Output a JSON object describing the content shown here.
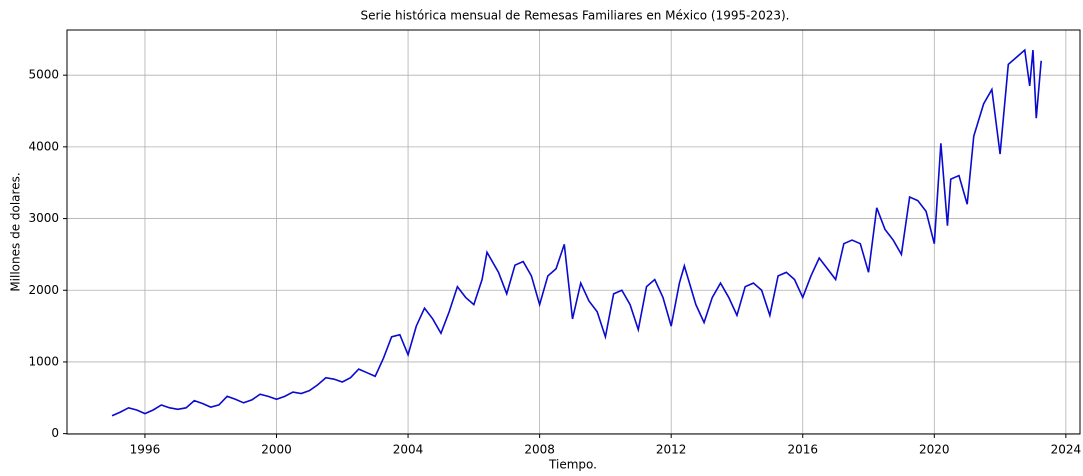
{
  "chart_data": {
    "type": "line",
    "title": "Serie histórica mensual de Remesas Familiares en México (1995-2023).",
    "xlabel": "Tiempo.",
    "ylabel": "Millones de dolares.",
    "x": [
      1995.0,
      1995.25,
      1995.5,
      1995.75,
      1996.0,
      1996.25,
      1996.5,
      1996.75,
      1997.0,
      1997.25,
      1997.5,
      1997.75,
      1998.0,
      1998.25,
      1998.5,
      1998.75,
      1999.0,
      1999.25,
      1999.5,
      1999.75,
      2000.0,
      2000.25,
      2000.5,
      2000.75,
      2001.0,
      2001.25,
      2001.5,
      2001.75,
      2002.0,
      2002.25,
      2002.5,
      2002.75,
      2003.0,
      2003.25,
      2003.5,
      2003.75,
      2004.0,
      2004.25,
      2004.5,
      2004.75,
      2005.0,
      2005.25,
      2005.5,
      2005.75,
      2006.0,
      2006.25,
      2006.4,
      2006.75,
      2007.0,
      2007.25,
      2007.5,
      2007.75,
      2008.0,
      2008.25,
      2008.5,
      2008.75,
      2009.0,
      2009.25,
      2009.5,
      2009.75,
      2010.0,
      2010.25,
      2010.5,
      2010.75,
      2011.0,
      2011.25,
      2011.5,
      2011.75,
      2012.0,
      2012.25,
      2012.4,
      2012.75,
      2013.0,
      2013.25,
      2013.5,
      2013.75,
      2014.0,
      2014.25,
      2014.5,
      2014.75,
      2015.0,
      2015.25,
      2015.5,
      2015.75,
      2016.0,
      2016.25,
      2016.5,
      2016.75,
      2017.0,
      2017.25,
      2017.5,
      2017.75,
      2018.0,
      2018.25,
      2018.5,
      2018.75,
      2019.0,
      2019.25,
      2019.5,
      2019.75,
      2020.0,
      2020.2,
      2020.4,
      2020.5,
      2020.75,
      2021.0,
      2021.2,
      2021.5,
      2021.75,
      2022.0,
      2022.25,
      2022.5,
      2022.75,
      2022.9,
      2023.0,
      2023.1,
      2023.25
    ],
    "series": [
      {
        "name": "Remesas",
        "color": "#0a0ad0",
        "values": [
          250,
          300,
          360,
          330,
          280,
          330,
          400,
          360,
          340,
          360,
          460,
          420,
          370,
          400,
          520,
          480,
          430,
          470,
          550,
          520,
          480,
          520,
          580,
          560,
          600,
          680,
          780,
          760,
          720,
          780,
          900,
          850,
          800,
          1050,
          1350,
          1380,
          1100,
          1500,
          1750,
          1600,
          1400,
          1700,
          2050,
          1900,
          1800,
          2150,
          2530,
          2250,
          1950,
          2350,
          2400,
          2200,
          1800,
          2200,
          2300,
          2640,
          1600,
          2100,
          1850,
          1700,
          1350,
          1950,
          2000,
          1800,
          1450,
          2050,
          2150,
          1900,
          1500,
          2100,
          2340,
          1800,
          1550,
          1900,
          2100,
          1900,
          1650,
          2050,
          2100,
          2000,
          1650,
          2200,
          2250,
          2150,
          1900,
          2200,
          2450,
          2300,
          2150,
          2650,
          2700,
          2650,
          2250,
          3150,
          2850,
          2700,
          2500,
          3300,
          3250,
          3100,
          2650,
          4050,
          2900,
          3550,
          3600,
          3200,
          4150,
          4600,
          4800,
          3900,
          5150,
          5250,
          5350,
          4850,
          5350,
          4400,
          5200
        ]
      }
    ],
    "xlim": [
      1993.63,
      2024.43
    ],
    "xticks": [
      1996,
      2000,
      2004,
      2008,
      2012,
      2016,
      2020,
      2024
    ],
    "ylim": [
      -5,
      5630
    ],
    "yticks": [
      0,
      1000,
      2000,
      3000,
      4000,
      5000
    ],
    "grid": true
  }
}
